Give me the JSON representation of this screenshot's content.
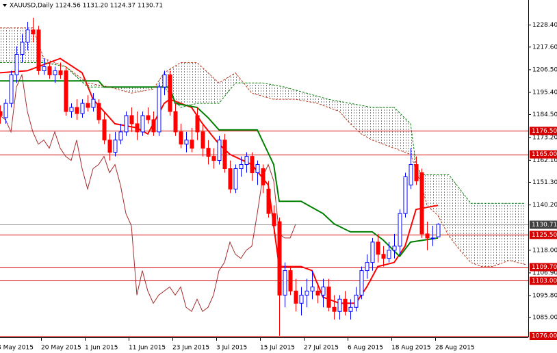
{
  "chart_data": {
    "type": "candlestick",
    "title": "XAUUSD,Daily  1124.56 1131.20 1124.37 1130.71",
    "categories": [
      "8 May 2015",
      null,
      null,
      null,
      null,
      null,
      null,
      null,
      "20 May 2015",
      null,
      null,
      null,
      null,
      null,
      null,
      null,
      "1 Jun 2015",
      null,
      null,
      null,
      null,
      null,
      null,
      null,
      "11 Jun 2015",
      null,
      null,
      null,
      null,
      null,
      null,
      null,
      "23 Jun 2015",
      null,
      null,
      null,
      null,
      null,
      null,
      null,
      "3 Jul 2015",
      null,
      null,
      null,
      null,
      null,
      null,
      null,
      "15 Jul 2015",
      null,
      null,
      null,
      null,
      null,
      null,
      null,
      "27 Jul 2015",
      null,
      null,
      null,
      null,
      null,
      null,
      null,
      "6 Aug 2015",
      null,
      null,
      null,
      null,
      null,
      null,
      null,
      "18 Aug 2015",
      null,
      null,
      null,
      null,
      null,
      null,
      null,
      "28 Aug 2015"
    ],
    "open": [
      1186,
      1183,
      1190,
      1204,
      1214,
      1220,
      1226,
      1226,
      1206,
      1208,
      1204,
      1206,
      1206,
      1186,
      1188,
      1185,
      1190,
      1188,
      1190,
      1182,
      1172,
      1166,
      1172,
      1176,
      1184,
      1180,
      1176,
      1184,
      1182,
      1176,
      1198,
      1204,
      1186,
      1176,
      1170,
      1172,
      1184,
      1176,
      1168,
      1164,
      1162,
      1172,
      1158,
      1148,
      1158,
      1160,
      1164,
      1156,
      1158,
      1148,
      1136,
      1132,
      1096,
      1108,
      1098,
      1092,
      1096,
      1098,
      1098,
      1096,
      1100,
      1090,
      1088,
      1094,
      1088,
      1090,
      1096,
      1108,
      1112,
      1122,
      1116,
      1114,
      1118,
      1120,
      1136,
      1150,
      1160,
      1156,
      1126,
      1124,
      1124.56
    ],
    "high": [
      1189,
      1192,
      1206,
      1218,
      1224,
      1230,
      1232,
      1228,
      1212,
      1210,
      1208,
      1210,
      1208,
      1190,
      1192,
      1192,
      1194,
      1195,
      1192,
      1186,
      1175,
      1176,
      1180,
      1186,
      1188,
      1186,
      1186,
      1188,
      1186,
      1200,
      1206,
      1206,
      1190,
      1180,
      1176,
      1178,
      1188,
      1180,
      1172,
      1168,
      1174,
      1175,
      1162,
      1160,
      1164,
      1166,
      1166,
      1162,
      1160,
      1152,
      1140,
      1134,
      1112,
      1110,
      1104,
      1100,
      1104,
      1108,
      1102,
      1104,
      1104,
      1096,
      1096,
      1098,
      1094,
      1100,
      1110,
      1116,
      1124,
      1126,
      1120,
      1122,
      1126,
      1138,
      1156,
      1168,
      1164,
      1158,
      1132,
      1130,
      1131.2
    ],
    "low": [
      1180,
      1180,
      1188,
      1200,
      1210,
      1216,
      1220,
      1204,
      1204,
      1202,
      1200,
      1202,
      1184,
      1183,
      1182,
      1183,
      1186,
      1186,
      1180,
      1170,
      1162,
      1164,
      1170,
      1174,
      1176,
      1172,
      1174,
      1180,
      1174,
      1174,
      1194,
      1184,
      1174,
      1168,
      1166,
      1166,
      1172,
      1164,
      1160,
      1158,
      1160,
      1156,
      1146,
      1146,
      1154,
      1156,
      1152,
      1150,
      1146,
      1134,
      1126,
      1076,
      1090,
      1096,
      1088,
      1086,
      1090,
      1094,
      1092,
      1090,
      1088,
      1084,
      1084,
      1086,
      1084,
      1088,
      1094,
      1104,
      1108,
      1112,
      1110,
      1112,
      1114,
      1116,
      1134,
      1148,
      1150,
      1124,
      1118,
      1120,
      1124.37
    ],
    "close": [
      1184,
      1190,
      1204,
      1214,
      1220,
      1226,
      1224,
      1206,
      1208,
      1204,
      1206,
      1204,
      1186,
      1188,
      1185,
      1190,
      1188,
      1192,
      1182,
      1172,
      1166,
      1172,
      1176,
      1184,
      1180,
      1176,
      1184,
      1182,
      1176,
      1198,
      1204,
      1186,
      1176,
      1170,
      1172,
      1168,
      1176,
      1168,
      1164,
      1162,
      1172,
      1158,
      1148,
      1158,
      1160,
      1164,
      1156,
      1160,
      1150,
      1136,
      1130,
      1096,
      1108,
      1098,
      1092,
      1096,
      1098,
      1100,
      1096,
      1100,
      1090,
      1088,
      1094,
      1088,
      1090,
      1096,
      1108,
      1112,
      1122,
      1116,
      1114,
      1118,
      1120,
      1136,
      1154,
      1160,
      1152,
      1126,
      1124,
      1124,
      1130.71
    ],
    "up_color": "#0000ff",
    "down_color": "#ff0000",
    "lines": [
      {
        "color": "#ff0000",
        "width": 2,
        "x": [
          0,
          5,
          11,
          15,
          17,
          21,
          25,
          27,
          30,
          31,
          35,
          37,
          40,
          42,
          46,
          49,
          51,
          55,
          57,
          59,
          62,
          65,
          67,
          69,
          72,
          74,
          76,
          80
        ],
        "values": [
          1205,
          1206,
          1212,
          1205,
          1192,
          1180,
          1178,
          1175,
          1190,
          1192,
          1188,
          1180,
          1170,
          1165,
          1160,
          1150,
          1110,
          1110,
          1108,
          1095,
          1092,
          1092,
          1100,
          1110,
          1112,
          1120,
          1138,
          1140
        ]
      },
      {
        "color": "#008000",
        "width": 2,
        "x": [
          0,
          18,
          19,
          31,
          32,
          36,
          38,
          40,
          47,
          50,
          51,
          55,
          59,
          61,
          64,
          68,
          70,
          73,
          75,
          80
        ],
        "values": [
          1201,
          1201,
          1198,
          1198,
          1190,
          1188,
          1183,
          1177,
          1177,
          1160,
          1142,
          1142,
          1136,
          1131,
          1127,
          1127,
          1123,
          1115,
          1122,
          1124
        ]
      },
      {
        "color": "#c0391b",
        "width": 1,
        "dash": true,
        "x": [
          0,
          6,
          8,
          12,
          16,
          20,
          24,
          28,
          30,
          33,
          36,
          40,
          43,
          46,
          50,
          54,
          58,
          62,
          64,
          66,
          68,
          72,
          75,
          77,
          78,
          80,
          82,
          84,
          86,
          88,
          90,
          93,
          96
        ],
        "values": [
          1227,
          1227,
          1212,
          1208,
          1200,
          1198,
          1195,
          1197,
          1205,
          1210,
          1210,
          1200,
          1205,
          1195,
          1192,
          1192,
          1190,
          1186,
          1180,
          1175,
          1172,
          1168,
          1165,
          1150,
          1140,
          1135,
          1125,
          1118,
          1112,
          1110,
          1110,
          1113,
          1111
        ]
      },
      {
        "color": "#008000",
        "width": 1,
        "dash": true,
        "x": [
          0,
          8,
          12,
          16,
          22,
          30,
          33,
          36,
          40,
          43,
          48,
          52,
          56,
          60,
          64,
          68,
          72,
          75,
          76,
          77,
          80,
          82,
          84,
          86,
          96
        ],
        "values": [
          1210,
          1210,
          1208,
          1198,
          1198,
          1198,
          1188,
          1190,
          1190,
          1200,
          1200,
          1198,
          1195,
          1192,
          1190,
          1188,
          1188,
          1180,
          1160,
          1155,
          1155,
          1155,
          1148,
          1141,
          1141
        ]
      }
    ],
    "chikou_color": "#a52a2a",
    "ylim": [
      1076,
      1240
    ],
    "yticks": [
      {
        "value": 1228.4,
        "label": "1228.40"
      },
      {
        "value": 1217.6,
        "label": "1217.60"
      },
      {
        "value": 1206.5,
        "label": "1206.50"
      },
      {
        "value": 1195.4,
        "label": "1195.40"
      },
      {
        "value": 1184.5,
        "label": "1184.50"
      },
      {
        "value": 1173.2,
        "label": "1173.20"
      },
      {
        "value": 1162.1,
        "label": "1162.10"
      },
      {
        "value": 1151.3,
        "label": "1151.30"
      },
      {
        "value": 1140.2,
        "label": "1140.20"
      },
      {
        "value": 1118,
        "label": "1118.00"
      },
      {
        "value": 1106.9,
        "label": "1106.90"
      },
      {
        "value": 1095.8,
        "label": "1095.80"
      },
      {
        "value": 1085,
        "label": "1085.00"
      }
    ],
    "levels": [
      {
        "value": 1176.5,
        "label": "1176.50"
      },
      {
        "value": 1165,
        "label": "1165.00"
      },
      {
        "value": 1125.5,
        "label": "1125.50"
      },
      {
        "value": 1109.7,
        "label": "1109.70"
      },
      {
        "value": 1103,
        "label": "1103.00"
      },
      {
        "value": 1076,
        "label": "1076.00"
      }
    ],
    "level_color": "#d40000",
    "last_price": {
      "value": 1130.71,
      "label": "1130.71"
    }
  }
}
